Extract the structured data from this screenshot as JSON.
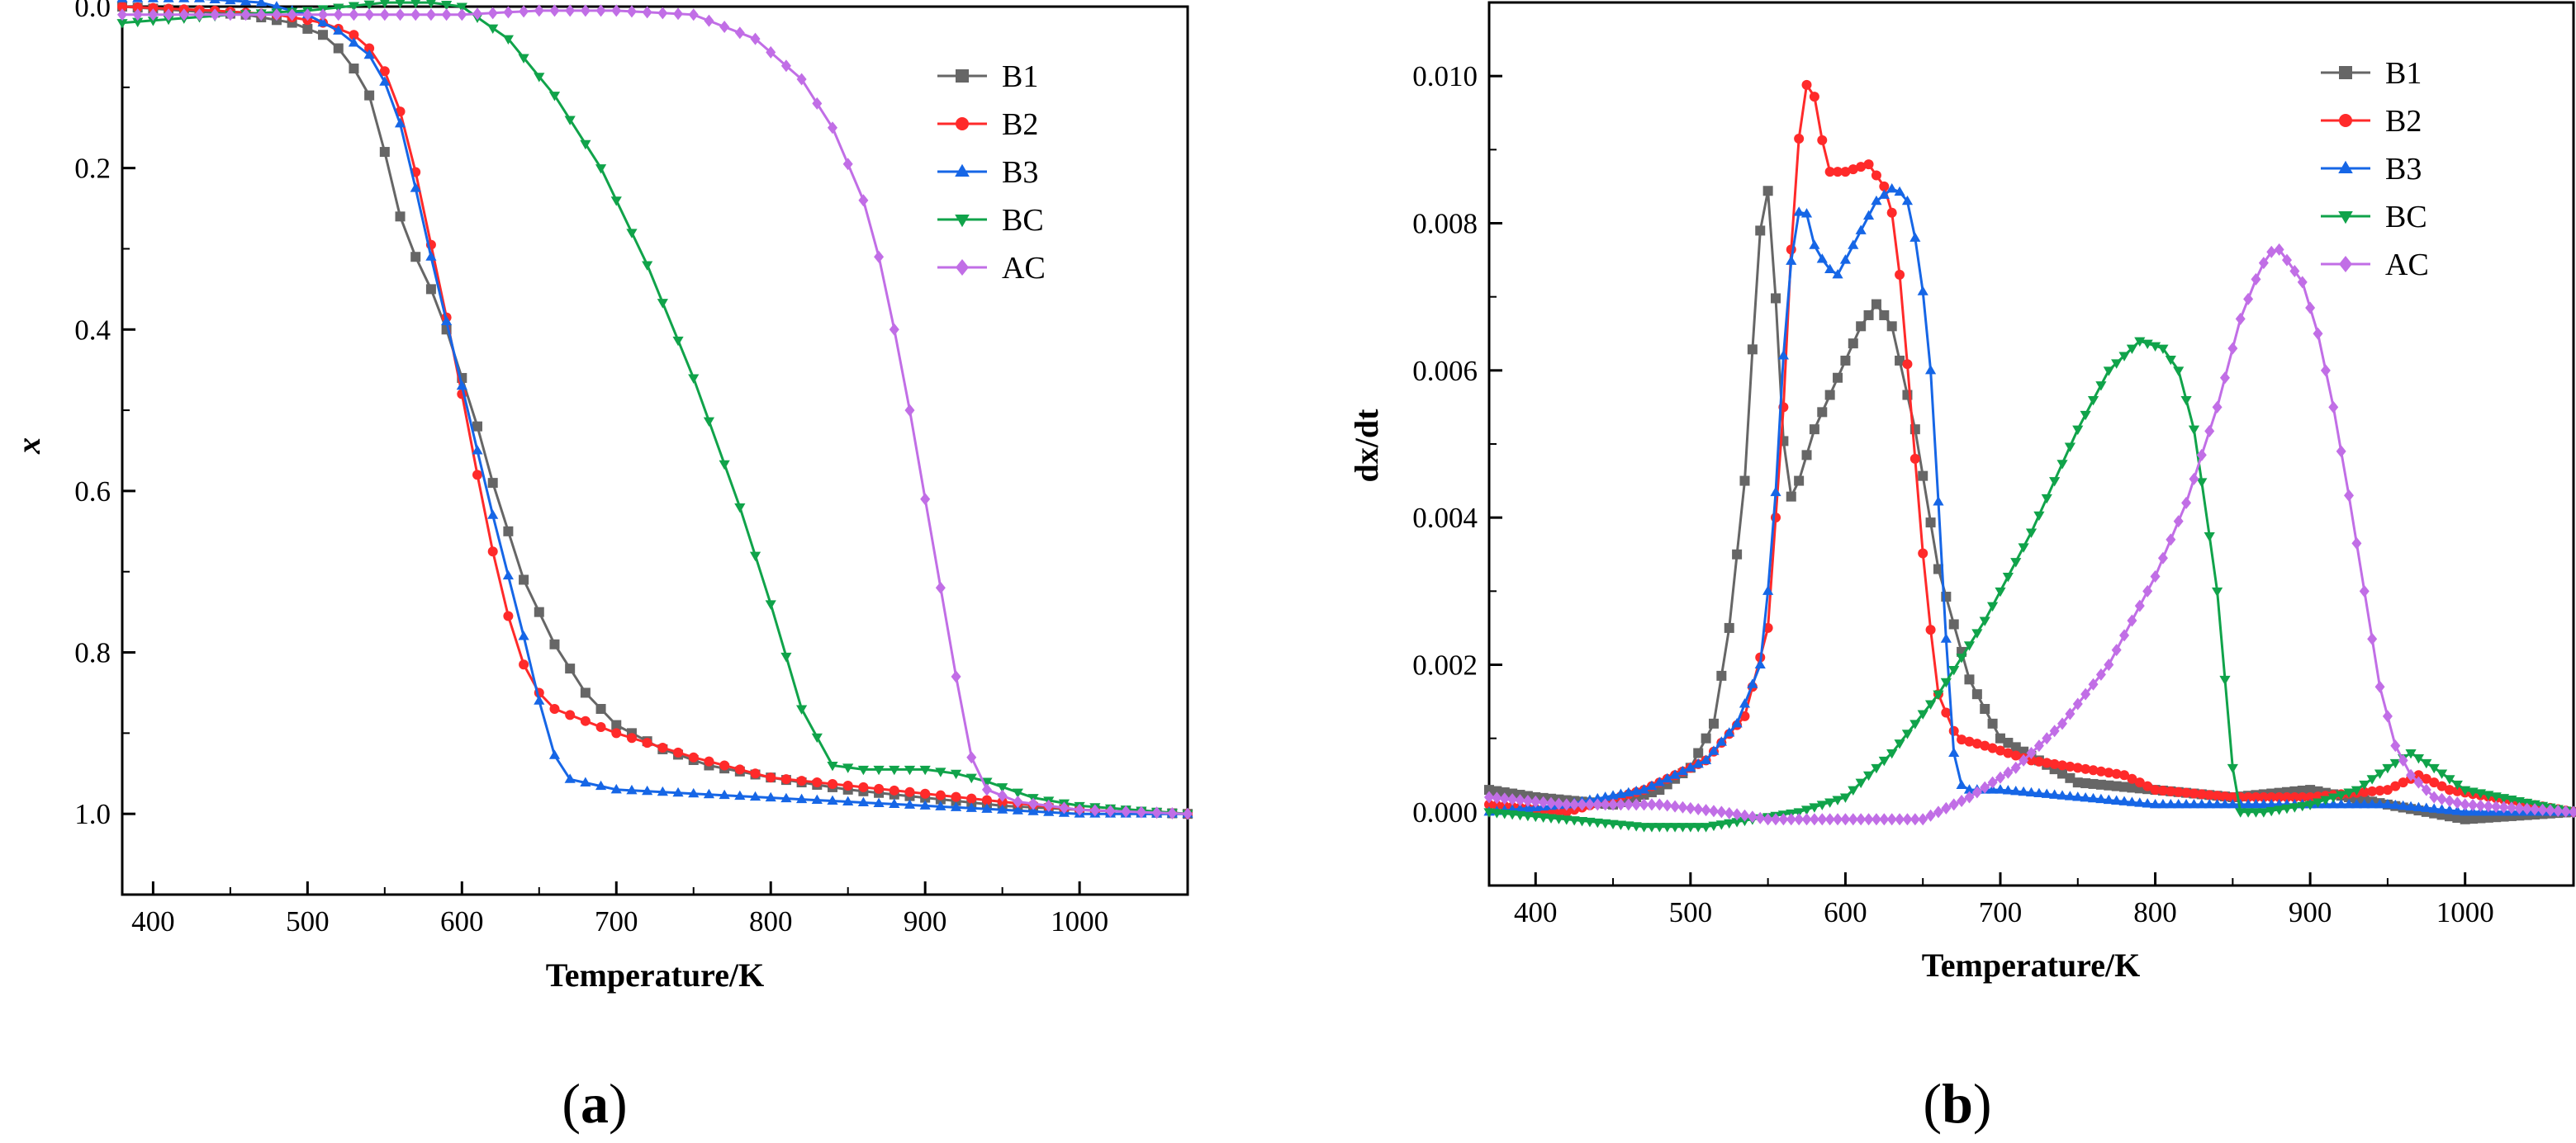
{
  "colors": {
    "B1": "#666666",
    "B2": "#ff2a2a",
    "B3": "#1666e6",
    "BC": "#10a34a",
    "AC": "#c16ee6"
  },
  "chart_data": [
    {
      "panel_label": "a",
      "type": "line",
      "xlabel": "Temperature/K",
      "ylabel": "x",
      "xlim": [
        380,
        1070
      ],
      "ylim": [
        0,
        1.1
      ],
      "y_inverted": true,
      "xticks": [
        400,
        500,
        600,
        700,
        800,
        900,
        1000
      ],
      "yticks": [
        0.0,
        0.2,
        0.4,
        0.6,
        0.8,
        1.0
      ],
      "ytick_labels": [
        "0.0",
        "0.2",
        "0.4",
        "0.6",
        "0.8",
        "1.0"
      ],
      "legend_position": "top-right",
      "series": [
        {
          "name": "B1",
          "marker": "square",
          "x": [
            380,
            420,
            460,
            490,
            510,
            525,
            540,
            550,
            560,
            570,
            580,
            590,
            600,
            610,
            620,
            630,
            640,
            660,
            680,
            700,
            730,
            760,
            800,
            850,
            900,
            950,
            1000,
            1070
          ],
          "y": [
            0.0,
            0.005,
            0.01,
            0.02,
            0.035,
            0.06,
            0.11,
            0.18,
            0.26,
            0.31,
            0.35,
            0.4,
            0.46,
            0.52,
            0.59,
            0.65,
            0.71,
            0.79,
            0.85,
            0.89,
            0.92,
            0.94,
            0.955,
            0.97,
            0.98,
            0.99,
            0.995,
            1.0
          ]
        },
        {
          "name": "B2",
          "marker": "circle",
          "x": [
            380,
            440,
            480,
            510,
            530,
            545,
            555,
            565,
            575,
            585,
            595,
            605,
            615,
            625,
            635,
            645,
            660,
            700,
            750,
            800,
            850,
            900,
            950,
            1000,
            1070
          ],
          "y": [
            0.0,
            0.005,
            0.01,
            0.02,
            0.035,
            0.06,
            0.1,
            0.16,
            0.25,
            0.34,
            0.43,
            0.53,
            0.63,
            0.72,
            0.79,
            0.84,
            0.87,
            0.9,
            0.93,
            0.955,
            0.965,
            0.975,
            0.985,
            0.995,
            1.0
          ]
        },
        {
          "name": "B3",
          "marker": "triangle-up",
          "x": [
            380,
            430,
            470,
            500,
            520,
            540,
            555,
            565,
            575,
            585,
            595,
            605,
            615,
            625,
            635,
            645,
            655,
            665,
            700,
            800,
            900,
            950,
            1000,
            1070
          ],
          "y": [
            -0.01,
            -0.01,
            -0.005,
            0.01,
            0.03,
            0.06,
            0.11,
            0.18,
            0.27,
            0.35,
            0.43,
            0.51,
            0.59,
            0.67,
            0.74,
            0.82,
            0.9,
            0.955,
            0.97,
            0.98,
            0.99,
            0.995,
            1.0,
            1.0
          ]
        },
        {
          "name": "BC",
          "marker": "triangle-down",
          "x": [
            380,
            450,
            500,
            550,
            580,
            600,
            630,
            660,
            690,
            720,
            750,
            780,
            800,
            820,
            840,
            860,
            900,
            920,
            940,
            970,
            1000,
            1070
          ],
          "y": [
            0.02,
            0.01,
            0.005,
            -0.005,
            -0.005,
            0.0,
            0.04,
            0.11,
            0.2,
            0.32,
            0.46,
            0.62,
            0.74,
            0.87,
            0.94,
            0.945,
            0.945,
            0.95,
            0.96,
            0.98,
            0.99,
            1.0
          ]
        },
        {
          "name": "AC",
          "marker": "diamond",
          "x": [
            380,
            450,
            500,
            550,
            600,
            650,
            700,
            750,
            790,
            820,
            840,
            860,
            870,
            880,
            890,
            900,
            910,
            920,
            930,
            940,
            960,
            1000,
            1070
          ],
          "y": [
            0.01,
            0.01,
            0.01,
            0.01,
            0.01,
            0.005,
            0.005,
            0.01,
            0.04,
            0.09,
            0.15,
            0.24,
            0.31,
            0.4,
            0.5,
            0.61,
            0.72,
            0.83,
            0.93,
            0.97,
            0.985,
            0.995,
            1.0
          ]
        }
      ]
    },
    {
      "panel_label": "b",
      "type": "line",
      "xlabel": "Temperature/K",
      "ylabel": "dx/dt",
      "xlim": [
        370,
        1070
      ],
      "ylim": [
        -0.001,
        0.011
      ],
      "xticks": [
        400,
        500,
        600,
        700,
        800,
        900,
        1000
      ],
      "yticks": [
        0.0,
        0.002,
        0.004,
        0.006,
        0.008,
        0.01
      ],
      "ytick_labels": [
        "0.000",
        "0.002",
        "0.004",
        "0.006",
        "0.008",
        "0.010"
      ],
      "legend_position": "top-right",
      "series": [
        {
          "name": "B1",
          "marker": "square",
          "x": [
            370,
            400,
            450,
            480,
            500,
            515,
            525,
            535,
            542,
            548,
            553,
            558,
            563,
            570,
            580,
            595,
            610,
            620,
            630,
            645,
            660,
            680,
            700,
            750,
            800,
            850,
            900,
            950,
            1000,
            1070
          ],
          "y": [
            0.0003,
            0.0002,
            0.0001,
            0.0003,
            0.0006,
            0.0012,
            0.0025,
            0.0045,
            0.007,
            0.0088,
            0.0079,
            0.0056,
            0.0042,
            0.0045,
            0.0052,
            0.0059,
            0.0066,
            0.0069,
            0.0066,
            0.0052,
            0.0033,
            0.0018,
            0.001,
            0.0004,
            0.0003,
            0.0002,
            0.0003,
            0.0001,
            -0.0001,
            0.0
          ]
        },
        {
          "name": "B2",
          "marker": "circle",
          "x": [
            370,
            420,
            470,
            510,
            535,
            550,
            560,
            567,
            573,
            578,
            583,
            590,
            600,
            615,
            625,
            632,
            638,
            645,
            652,
            660,
            672,
            690,
            720,
            750,
            780,
            800,
            850,
            900,
            950,
            970,
            990,
            1070
          ],
          "y": [
            0.0001,
            0.0,
            0.0003,
            0.0007,
            0.0013,
            0.0025,
            0.0055,
            0.0085,
            0.0098,
            0.01,
            0.0093,
            0.0087,
            0.0087,
            0.0088,
            0.0085,
            0.008,
            0.0066,
            0.0048,
            0.003,
            0.0016,
            0.001,
            0.0009,
            0.0007,
            0.0006,
            0.0005,
            0.0003,
            0.0002,
            0.0002,
            0.0003,
            0.0005,
            0.0003,
            0.0
          ]
        },
        {
          "name": "B3",
          "marker": "triangle-up",
          "x": [
            370,
            420,
            470,
            510,
            530,
            545,
            553,
            560,
            567,
            573,
            580,
            588,
            595,
            605,
            620,
            632,
            640,
            648,
            655,
            662,
            668,
            672,
            680,
            700,
            750,
            800,
            850,
            900,
            950,
            1000,
            1070
          ],
          "y": [
            0.0,
            0.0001,
            0.0003,
            0.0007,
            0.0012,
            0.002,
            0.0036,
            0.0062,
            0.008,
            0.0083,
            0.0077,
            0.0074,
            0.0073,
            0.0077,
            0.0083,
            0.0085,
            0.0083,
            0.0075,
            0.006,
            0.0035,
            0.0012,
            0.0004,
            0.0003,
            0.0003,
            0.0002,
            0.0001,
            0.0001,
            0.0001,
            0.0001,
            0.0,
            0.0
          ]
        },
        {
          "name": "BC",
          "marker": "triangle-down",
          "x": [
            370,
            420,
            470,
            510,
            540,
            570,
            600,
            630,
            660,
            690,
            720,
            750,
            770,
            790,
            805,
            815,
            825,
            832,
            840,
            845,
            850,
            855,
            870,
            900,
            930,
            950,
            965,
            980,
            1000,
            1070
          ],
          "y": [
            0.0,
            -0.0001,
            -0.0002,
            -0.0002,
            -0.0001,
            0.0,
            0.0002,
            0.0008,
            0.0016,
            0.0026,
            0.0038,
            0.0052,
            0.006,
            0.0064,
            0.0063,
            0.006,
            0.0052,
            0.0042,
            0.003,
            0.0018,
            0.0006,
            0.0,
            0.0,
            0.0001,
            0.0003,
            0.0006,
            0.0008,
            0.0006,
            0.0003,
            0.0
          ]
        },
        {
          "name": "AC",
          "marker": "diamond",
          "x": [
            370,
            420,
            480,
            520,
            550,
            580,
            620,
            650,
            680,
            710,
            740,
            770,
            800,
            820,
            840,
            855,
            868,
            878,
            885,
            895,
            905,
            915,
            925,
            935,
            945,
            955,
            965,
            980,
            1000,
            1070
          ],
          "y": [
            0.0002,
            0.0001,
            0.0001,
            0.0,
            -0.0001,
            -0.0001,
            -0.0001,
            -0.0001,
            0.0002,
            0.0006,
            0.0012,
            0.002,
            0.0032,
            0.0042,
            0.0055,
            0.0067,
            0.0074,
            0.0077,
            0.0075,
            0.0072,
            0.0065,
            0.0055,
            0.0043,
            0.003,
            0.0017,
            0.0009,
            0.0005,
            0.0002,
            0.0001,
            0.0
          ]
        }
      ]
    }
  ]
}
